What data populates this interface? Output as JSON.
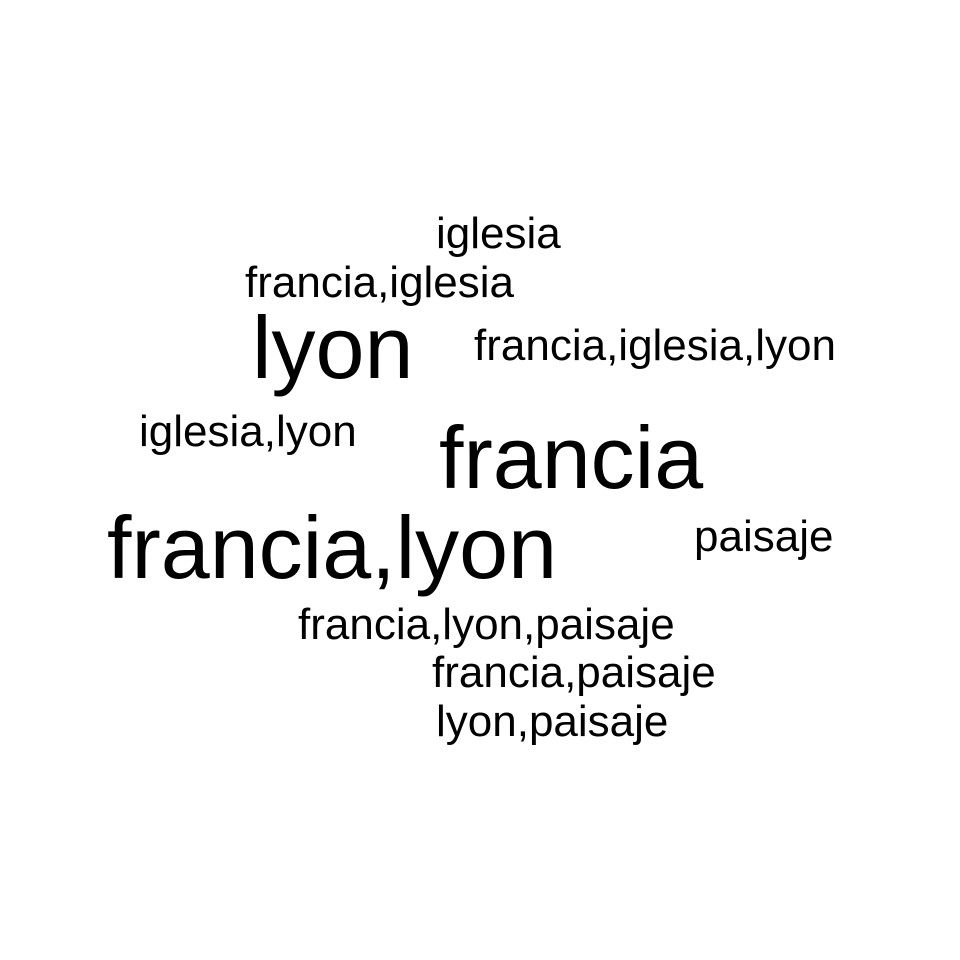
{
  "cloud": {
    "text_color": "#000000",
    "background_color": "#ffffff",
    "words": [
      {
        "text": "iglesia"
      },
      {
        "text": "francia,iglesia"
      },
      {
        "text": "lyon"
      },
      {
        "text": "francia,iglesia,lyon"
      },
      {
        "text": "iglesia,lyon"
      },
      {
        "text": "francia"
      },
      {
        "text": "francia,lyon"
      },
      {
        "text": "paisaje"
      },
      {
        "text": "francia,lyon,paisaje"
      },
      {
        "text": "francia,paisaje"
      },
      {
        "text": "lyon,paisaje"
      }
    ]
  }
}
